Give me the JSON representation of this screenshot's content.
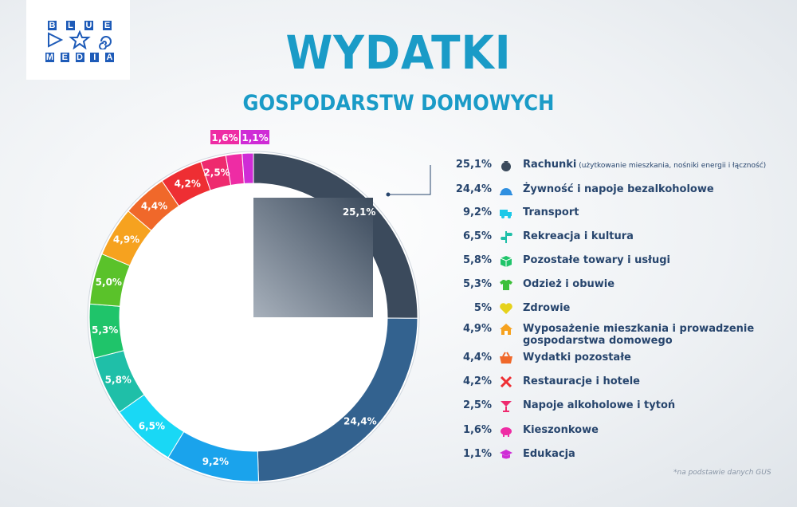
{
  "logo": {
    "top_letters": [
      "B",
      "L",
      "U",
      "E"
    ],
    "bottom_letters": [
      "M",
      "E",
      "D",
      "I",
      "A"
    ]
  },
  "title": "WYDATKI",
  "subtitle": "GOSPODARSTW DOMOWYCH",
  "footnote": "*na podstawie danych GUS",
  "chart_data": {
    "type": "pie",
    "style": "donut",
    "categories": [
      "Rachunki",
      "Żywność i napoje bezalkoholowe",
      "Transport",
      "Rekreacja i kultura",
      "Pozostałe towary i usługi",
      "Odzież i obuwie",
      "Zdrowie",
      "Wyposażenie mieszkania i prowadzenie gospodarstwa domowego",
      "Wydatki pozostałe",
      "Restauracje i hotele",
      "Napoje alkoholowe i tytoń",
      "Kieszonkowe",
      "Edukacja"
    ],
    "values": [
      25.1,
      24.4,
      9.2,
      6.5,
      5.8,
      5.3,
      5.0,
      4.9,
      4.4,
      4.2,
      2.5,
      1.6,
      1.1
    ],
    "ring_labels": [
      "25,1%",
      "24,4%",
      "9,2%",
      "6,5%",
      "5,8%",
      "5,3%",
      "5,0%",
      "4,9%",
      "4,4%",
      "4,2%",
      "2,5%",
      "1,6%",
      "1,1%"
    ],
    "colors": [
      "#3b4a5c",
      "#33628f",
      "#1aa3ec",
      "#19d8f5",
      "#1fbfa8",
      "#1fc46a",
      "#5ac22a",
      "#f6a21f",
      "#f0682a",
      "#ee2e33",
      "#ee2a6e",
      "#ee2ca4",
      "#cf2cd6"
    ],
    "legend_placement": "right"
  },
  "legend": [
    {
      "value": "25,1%",
      "label": "Rachunki",
      "note": "(użytkowanie mieszkania, nośniki energii i łączność)",
      "icon": "money-bag-icon",
      "color": "#3b4a5c"
    },
    {
      "value": "24,4%",
      "label": "Żywność i napoje bezalkoholowe",
      "icon": "food-cloche-icon",
      "color": "#2f8fe0"
    },
    {
      "value": "9,2%",
      "label": "Transport",
      "icon": "truck-icon",
      "color": "#1cc8e8"
    },
    {
      "value": "6,5%",
      "label": "Rekreacja i kultura",
      "icon": "signpost-icon",
      "color": "#1fbfa8"
    },
    {
      "value": "5,8%",
      "label": "Pozostałe towary i usługi",
      "icon": "box-icon",
      "color": "#1fc46a"
    },
    {
      "value": "5,3%",
      "label": "Odzież i obuwie",
      "icon": "shirt-icon",
      "color": "#3cc03a"
    },
    {
      "value": "5%",
      "label": "Zdrowie",
      "icon": "heart-icon",
      "color": "#e6d21c"
    },
    {
      "value": "4,9%",
      "label": "Wyposażenie mieszkania i prowadzenie",
      "label2": "gospodarstwa domowego",
      "icon": "house-icon",
      "color": "#f6a21f"
    },
    {
      "value": "4,4%",
      "label": "Wydatki pozostałe",
      "icon": "basket-icon",
      "color": "#f0682a"
    },
    {
      "value": "4,2%",
      "label": "Restauracje i hotele",
      "icon": "cutlery-icon",
      "color": "#ee2e33"
    },
    {
      "value": "2,5%",
      "label": "Napoje alkoholowe i tytoń",
      "icon": "cocktail-icon",
      "color": "#ee2a6e"
    },
    {
      "value": "1,6%",
      "label": "Kieszonkowe",
      "icon": "piggy-bank-icon",
      "color": "#ee2ca4"
    },
    {
      "value": "1,1%",
      "label": "Edukacja",
      "icon": "graduation-cap-icon",
      "color": "#cf2cd6"
    }
  ]
}
